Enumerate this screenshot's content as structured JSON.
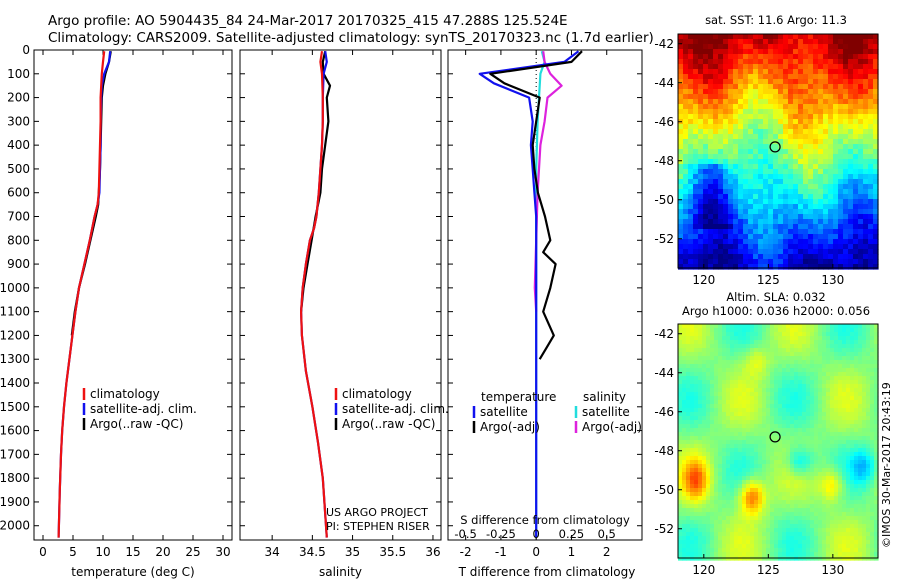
{
  "header": {
    "line1": "Argo profile: AO 5904435_84 24-Mar-2017 20170325_415 47.288S 125.524E",
    "line2": "Climatology: CARS2009. Satellite-adjusted climatology: synTS_20170323.nc (1.7d earlier)"
  },
  "credit": {
    "project": "US ARGO PROJECT",
    "pi": "PI: STEPHEN RISER",
    "stamp": "©IMOS 30-Mar-2017 20:43:19"
  },
  "colors": {
    "climatology": "#ee1111",
    "satellite": "#1111ee",
    "argo": "#000000",
    "sat_s": "#22dddd",
    "argo_s": "#dd22dd"
  },
  "chart_data": [
    {
      "id": "temperature",
      "type": "line",
      "xlabel": "temperature (deg C)",
      "xlim": [
        -1.5,
        31.5
      ],
      "xticks": [
        0,
        5,
        10,
        15,
        20,
        25,
        30
      ],
      "ylim": [
        2060,
        0
      ],
      "yticks": [
        0,
        100,
        200,
        300,
        400,
        500,
        600,
        700,
        800,
        900,
        1000,
        1100,
        1200,
        1300,
        1400,
        1500,
        1600,
        1700,
        1800,
        1900,
        2000
      ],
      "legend": [
        "climatology",
        "satellite-adj. clim.",
        "Argo(..raw -QC)"
      ],
      "series": [
        {
          "name": "climatology",
          "color_key": "climatology",
          "x": [
            10.2,
            10.0,
            9.8,
            9.7,
            9.6,
            9.6,
            9.5,
            9.4,
            9.3,
            9.1,
            8.6,
            7.8,
            6.9,
            6.0,
            5.4,
            4.9,
            4.4,
            3.9,
            3.5,
            3.2,
            3.0,
            2.8,
            2.6
          ],
          "y": [
            5,
            50,
            100,
            150,
            200,
            300,
            400,
            500,
            600,
            650,
            700,
            800,
            900,
            1000,
            1100,
            1200,
            1300,
            1400,
            1500,
            1600,
            1700,
            1850,
            2050
          ]
        },
        {
          "name": "satellite-adj. clim.",
          "color_key": "satellite",
          "x": [
            11.2,
            11.0,
            10.2,
            9.8,
            9.7,
            9.6,
            9.6,
            9.5,
            9.4,
            9.1,
            8.6,
            7.8,
            6.9,
            6.0,
            5.4,
            4.9,
            4.4,
            3.9,
            3.5,
            3.2,
            3.0,
            2.8,
            2.6
          ],
          "y": [
            5,
            50,
            100,
            150,
            200,
            300,
            400,
            500,
            600,
            650,
            700,
            800,
            900,
            1000,
            1100,
            1200,
            1300,
            1400,
            1500,
            1600,
            1700,
            1850,
            2050
          ]
        },
        {
          "name": "Argo(..raw -QC)",
          "color_key": "argo",
          "x": [
            11.3,
            11.0,
            10.4,
            10.0,
            9.8,
            9.7,
            9.6,
            9.5,
            9.3,
            9.2,
            8.8,
            7.9,
            7.0,
            6.0,
            5.3,
            4.8
          ],
          "y": [
            5,
            50,
            100,
            150,
            200,
            300,
            400,
            500,
            600,
            650,
            700,
            800,
            900,
            1000,
            1100,
            1200
          ]
        }
      ]
    },
    {
      "id": "salinity",
      "type": "line",
      "xlabel": "salinity",
      "xlim": [
        33.6,
        36.1
      ],
      "xticks": [
        34,
        34.5,
        35,
        35.5,
        36
      ],
      "ylim": [
        2060,
        0
      ],
      "legend": [
        "climatology",
        "satellite-adj. clim.",
        "Argo(..raw -QC)"
      ],
      "series": [
        {
          "name": "climatology",
          "color_key": "climatology",
          "x": [
            34.62,
            34.6,
            34.62,
            34.63,
            34.63,
            34.62,
            34.6,
            34.58,
            34.55,
            34.52,
            34.47,
            34.42,
            34.38,
            34.36,
            34.37,
            34.42,
            34.5,
            34.57,
            34.63,
            34.66,
            34.68
          ],
          "y": [
            5,
            50,
            100,
            200,
            300,
            400,
            500,
            600,
            700,
            750,
            800,
            900,
            1000,
            1100,
            1200,
            1350,
            1500,
            1650,
            1800,
            1950,
            2050
          ]
        },
        {
          "name": "satellite-adj. clim.",
          "color_key": "satellite",
          "x": [
            34.66,
            34.68,
            34.64,
            34.63,
            34.63,
            34.62,
            34.6,
            34.58,
            34.55,
            34.52,
            34.47,
            34.42,
            34.38,
            34.36,
            34.37,
            34.42,
            34.5,
            34.57,
            34.63,
            34.66,
            34.68
          ],
          "y": [
            5,
            50,
            100,
            200,
            300,
            400,
            500,
            600,
            700,
            750,
            800,
            900,
            1000,
            1100,
            1200,
            1350,
            1500,
            1650,
            1800,
            1950,
            2050
          ]
        },
        {
          "name": "Argo(..raw -QC)",
          "color_key": "argo",
          "x": [
            34.66,
            34.63,
            34.64,
            34.72,
            34.68,
            34.7,
            34.66,
            34.62,
            34.6,
            34.57,
            34.54,
            34.49,
            34.44,
            34.39,
            34.36
          ],
          "y": [
            5,
            50,
            100,
            150,
            200,
            300,
            400,
            500,
            600,
            650,
            700,
            800,
            900,
            1000,
            1100
          ]
        }
      ]
    },
    {
      "id": "differences",
      "type": "line",
      "xlabel": "T difference from climatology",
      "xlabel_top": "S difference from climatology",
      "xlim": [
        -2.5,
        3.0
      ],
      "xticks": [
        -2,
        -1,
        0,
        1,
        2
      ],
      "sticks": [
        "-0.5",
        "-0.25",
        "0",
        "0.25",
        "0.5"
      ],
      "ylim": [
        2060,
        0
      ],
      "legend_headers": [
        "temperature",
        "salinity"
      ],
      "legend": [
        "satellite",
        "Argo(-adj)",
        "satellite",
        "Argo(-adj)"
      ],
      "series": [
        {
          "name": "satellite",
          "group": "temperature",
          "color_key": "satellite",
          "x": [
            1.2,
            0.8,
            -1.6,
            -1.2,
            -0.2,
            -0.1,
            -0.15,
            -0.1,
            -0.05,
            0,
            0,
            0,
            0,
            0,
            0
          ],
          "y": [
            5,
            50,
            100,
            140,
            200,
            300,
            400,
            500,
            600,
            700,
            800,
            1000,
            1200,
            1500,
            2050
          ]
        },
        {
          "name": "Argo(-adj)",
          "group": "temperature",
          "color_key": "argo",
          "x": [
            1.3,
            1.0,
            -1.3,
            -0.9,
            0.1,
            0.0,
            -0.1,
            -0.05,
            0.05,
            0.25,
            0.4,
            0.2,
            0.55,
            0.4,
            0.2,
            0.5,
            0.3,
            0.1
          ],
          "y": [
            5,
            50,
            100,
            140,
            200,
            300,
            400,
            500,
            600,
            700,
            800,
            850,
            900,
            1000,
            1100,
            1200,
            1250,
            1300
          ]
        },
        {
          "name": "satellite",
          "group": "salinity",
          "color_key": "sat_s",
          "x": [
            0.04,
            0.06,
            0.03,
            0.02,
            0.01,
            0.0,
            0.0,
            0.0,
            0.0,
            0.0
          ],
          "y": [
            5,
            50,
            100,
            200,
            300,
            500,
            800,
            1200,
            1500,
            2050
          ]
        },
        {
          "name": "Argo(-adj)",
          "group": "salinity",
          "color_key": "argo_s",
          "x": [
            0.05,
            0.06,
            0.1,
            0.18,
            0.08,
            0.06,
            0.03,
            0.01,
            0.0,
            -0.01,
            0.0
          ],
          "y": [
            5,
            50,
            100,
            150,
            200,
            300,
            400,
            600,
            800,
            1000,
            1100
          ]
        }
      ]
    },
    {
      "id": "sst-map",
      "type": "heatmap",
      "title": "sat. SST: 11.6 Argo: 11.3",
      "xlim": [
        118,
        133.5
      ],
      "ylim": [
        -53.5,
        -41.5
      ],
      "xticks": [
        120,
        125,
        130
      ],
      "yticks": [
        -42,
        -44,
        -46,
        -48,
        -50,
        -52
      ],
      "argo_position": [
        125.524,
        -47.288
      ]
    },
    {
      "id": "sla-map",
      "type": "heatmap",
      "title": "Altim. SLA: 0.032",
      "subtitle": "Argo h1000: 0.036 h2000: 0.056",
      "xlim": [
        118,
        133.5
      ],
      "ylim": [
        -53.5,
        -41.5
      ],
      "xticks": [
        120,
        125,
        130
      ],
      "yticks": [
        -42,
        -44,
        -46,
        -48,
        -50,
        -52
      ],
      "argo_position": [
        125.524,
        -47.288
      ]
    }
  ]
}
